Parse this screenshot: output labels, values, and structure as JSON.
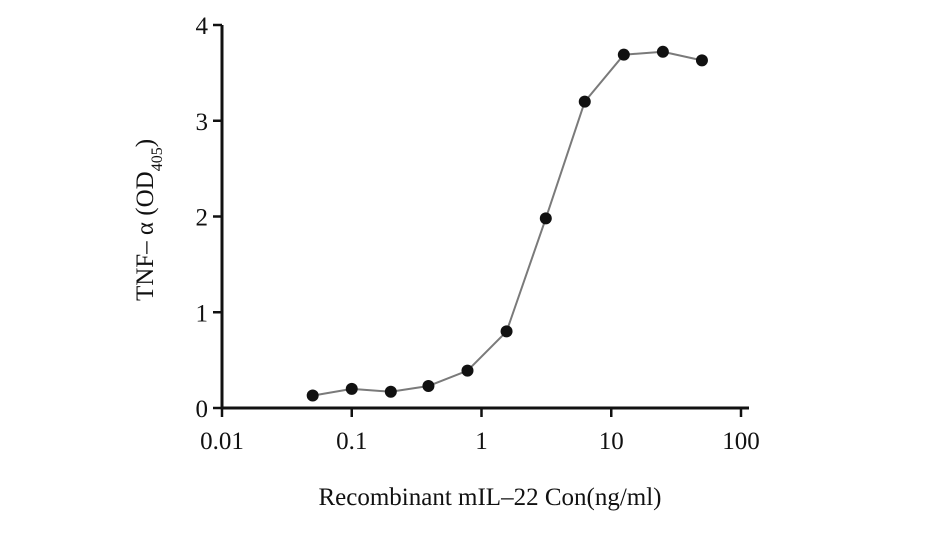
{
  "chart_data": {
    "type": "line",
    "xscale": "log",
    "xlim": [
      0.01,
      100
    ],
    "ylim": [
      0,
      4
    ],
    "xticks": [
      0.01,
      0.1,
      1,
      10,
      100
    ],
    "xtick_labels": [
      "0.01",
      "0.1",
      "1",
      "10",
      "100"
    ],
    "yticks": [
      0,
      1,
      2,
      3,
      4
    ],
    "ytick_labels": [
      "0",
      "1",
      "2",
      "3",
      "4"
    ],
    "xlabel": "Recombinant mIL–22 Con(ng/ml)",
    "ylabel": "TNF– α (OD405)",
    "ylabel_parts": {
      "main": "TNF– α (OD",
      "sub": "405",
      "close": ")"
    },
    "grid": false,
    "series": [
      {
        "x": [
          0.05,
          0.1,
          0.2,
          0.39,
          0.78,
          1.56,
          3.13,
          6.25,
          12.5,
          25,
          50
        ],
        "y": [
          0.13,
          0.2,
          0.17,
          0.23,
          0.39,
          0.8,
          1.98,
          3.2,
          3.69,
          3.72,
          3.63
        ]
      }
    ]
  }
}
